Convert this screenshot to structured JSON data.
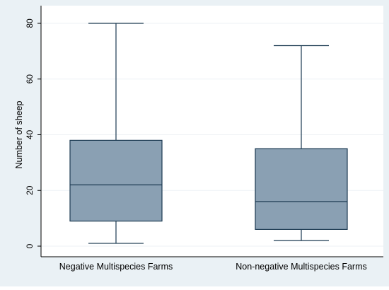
{
  "chart_data": {
    "type": "box",
    "title": "",
    "xlabel": "",
    "ylabel": "Number of sheep",
    "ylim": [
      0,
      80
    ],
    "yticks": [
      0,
      20,
      40,
      60,
      80
    ],
    "grid": "horizontal",
    "legend": "none",
    "categories": [
      "Negative Multispecies Farms",
      "Non-negative Multispecies Farms"
    ],
    "boxes": [
      {
        "category": "Negative Multispecies Farms",
        "min": 1,
        "q1": 9,
        "median": 22,
        "q3": 38,
        "max": 80
      },
      {
        "category": "Non-negative Multispecies Farms",
        "min": 2,
        "q1": 6,
        "median": 16,
        "q3": 35,
        "max": 72
      }
    ],
    "colors": {
      "outer_background": "#eaf1f5",
      "plot_background": "#ffffff",
      "box_fill": "#8aa0b3",
      "box_stroke": "#1c3a52",
      "grid": "#eef2f5",
      "axis": "#000000"
    }
  }
}
